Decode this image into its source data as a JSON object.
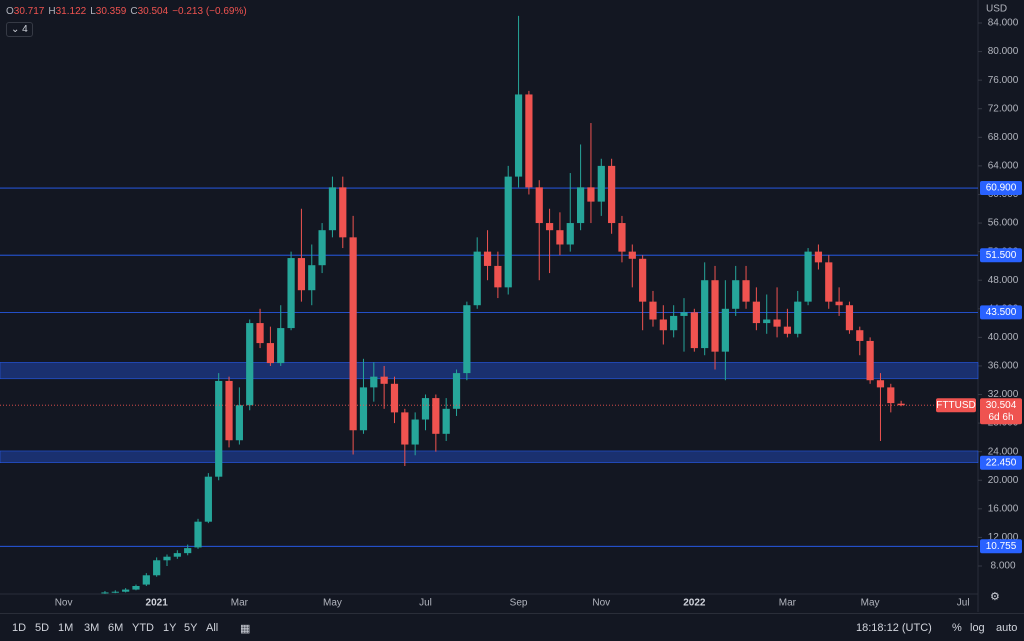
{
  "chart_data": {
    "type": "candlestick",
    "symbol": "FTTUSD",
    "currency": "USD",
    "countdown": "6d 6h",
    "header_labels": [
      "O",
      "H",
      "L",
      "C"
    ],
    "change": "−0.213 (−0.69%)",
    "indicator": "4",
    "up_color": "#26a69a",
    "down_color": "#ef5350",
    "categories": [
      "Nov",
      null,
      null,
      null,
      null,
      null,
      null,
      null,
      null,
      "2021",
      null,
      null,
      null,
      null,
      null,
      null,
      null,
      "Mar",
      null,
      null,
      null,
      null,
      null,
      null,
      null,
      null,
      "May",
      null,
      null,
      null,
      null,
      null,
      null,
      null,
      null,
      "Jul",
      null,
      null,
      null,
      null,
      null,
      null,
      null,
      null,
      "Sep",
      null,
      null,
      null,
      null,
      null,
      null,
      null,
      "Nov",
      null,
      null,
      null,
      null,
      null,
      null,
      null,
      null,
      "2022",
      null,
      null,
      null,
      null,
      null,
      null,
      null,
      null,
      "Mar",
      null,
      null,
      null,
      null,
      null,
      null,
      null,
      "May",
      null,
      null,
      null,
      null,
      null,
      null,
      null,
      null,
      "Jul"
    ],
    "open": [
      null,
      null,
      null,
      null,
      4.2,
      4.3,
      4.4,
      4.7,
      5.4,
      6.7,
      8.8,
      9.3,
      9.8,
      10.6,
      14.2,
      20.5,
      33.9,
      25.6,
      30.5,
      42.0,
      39.2,
      36.4,
      41.3,
      51.1,
      46.6,
      50.1,
      55.0,
      61.0,
      54.0,
      27.0,
      33.0,
      34.5,
      33.5,
      29.5,
      25.0,
      28.5,
      31.5,
      26.5,
      30.0,
      35.0,
      44.5,
      52.0,
      50.0,
      47.0,
      62.5,
      74.0,
      61.0,
      56.0,
      55.0,
      53.0,
      56.0,
      61.0,
      59.0,
      64.0,
      56.0,
      52.0,
      51.0,
      45.0,
      42.5,
      41.0,
      43.0,
      43.5,
      38.5,
      48.0,
      38.0,
      44.0,
      48.0,
      45.0,
      42.0,
      42.5,
      41.5,
      40.5,
      45.0,
      52.0,
      50.5,
      45.0,
      44.5,
      41.0,
      39.5,
      34.0,
      33.0,
      30.717,
      null,
      null,
      null,
      null,
      null,
      null
    ],
    "high": [
      null,
      null,
      null,
      null,
      4.5,
      4.6,
      4.9,
      5.4,
      7.0,
      9.2,
      9.6,
      10.2,
      11.0,
      14.6,
      21.0,
      35.0,
      34.5,
      33.0,
      42.5,
      44.0,
      41.5,
      44.5,
      52.0,
      58.0,
      53.0,
      56.0,
      62.5,
      62.5,
      57.0,
      37.0,
      36.5,
      36.0,
      34.5,
      30.0,
      29.5,
      32.0,
      32.0,
      31.5,
      35.5,
      45.0,
      54.0,
      55.0,
      52.0,
      64.0,
      85.0,
      74.5,
      62.0,
      58.0,
      57.5,
      63.0,
      67.0,
      70.0,
      65.0,
      65.0,
      57.0,
      53.0,
      51.5,
      46.5,
      44.5,
      44.5,
      45.5,
      44.0,
      50.5,
      50.0,
      48.0,
      50.0,
      50.0,
      47.0,
      46.0,
      47.0,
      44.0,
      46.5,
      52.5,
      53.0,
      51.5,
      47.0,
      45.0,
      41.5,
      40.0,
      35.0,
      33.5,
      31.122,
      null,
      null,
      null,
      null,
      null,
      null
    ],
    "low": [
      null,
      null,
      null,
      null,
      4.1,
      4.2,
      4.3,
      4.6,
      5.2,
      6.5,
      8.0,
      9.0,
      9.5,
      10.4,
      14.0,
      20.0,
      24.6,
      25.0,
      29.8,
      38.5,
      36.0,
      36.0,
      41.0,
      45.0,
      44.5,
      49.0,
      54.0,
      52.5,
      23.6,
      26.5,
      31.0,
      30.0,
      28.0,
      22.0,
      23.5,
      27.0,
      24.0,
      25.5,
      29.0,
      34.0,
      44.0,
      48.0,
      45.5,
      46.0,
      61.0,
      60.0,
      48.0,
      49.0,
      51.5,
      52.0,
      55.0,
      56.0,
      57.0,
      54.5,
      50.5,
      47.0,
      41.0,
      41.5,
      39.0,
      40.0,
      38.0,
      38.0,
      37.5,
      35.5,
      34.0,
      43.0,
      44.0,
      41.0,
      40.5,
      40.0,
      40.0,
      40.0,
      44.5,
      49.5,
      44.0,
      43.0,
      40.5,
      37.5,
      33.5,
      25.5,
      29.5,
      30.359,
      null,
      null,
      null,
      null,
      null,
      null
    ],
    "close": [
      null,
      null,
      null,
      null,
      4.3,
      4.4,
      4.7,
      5.2,
      6.7,
      8.8,
      9.3,
      9.8,
      10.5,
      14.2,
      20.5,
      33.9,
      25.6,
      30.5,
      42.0,
      39.2,
      36.4,
      41.3,
      51.1,
      46.6,
      50.1,
      55.0,
      61.0,
      54.0,
      27.0,
      33.0,
      34.5,
      33.5,
      29.5,
      25.0,
      28.5,
      31.5,
      26.5,
      30.0,
      35.0,
      44.5,
      52.0,
      50.0,
      47.0,
      62.5,
      74.0,
      61.0,
      56.0,
      55.0,
      53.0,
      56.0,
      61.0,
      59.0,
      64.0,
      56.0,
      52.0,
      51.0,
      45.0,
      42.5,
      41.0,
      43.0,
      43.5,
      38.5,
      48.0,
      38.0,
      44.0,
      48.0,
      45.0,
      42.0,
      42.5,
      41.5,
      40.5,
      45.0,
      52.0,
      50.5,
      45.0,
      44.5,
      41.0,
      39.5,
      34.0,
      33.0,
      30.8,
      30.504,
      null,
      null,
      null,
      null,
      null,
      null
    ],
    "ylim": [
      4.08,
      87.22
    ],
    "yticks": [
      {
        "value": 8,
        "label": "8.000"
      },
      {
        "value": 12,
        "label": "12.000"
      },
      {
        "value": 16,
        "label": "16.000"
      },
      {
        "value": 20,
        "label": "20.000"
      },
      {
        "value": 24,
        "label": "24.000"
      },
      {
        "value": 28,
        "label": "28.000"
      },
      {
        "value": 32,
        "label": "32.000"
      },
      {
        "value": 36,
        "label": "36.000"
      },
      {
        "value": 40,
        "label": "40.000"
      },
      {
        "value": 44,
        "label": "44.000"
      },
      {
        "value": 48,
        "label": "48.000"
      },
      {
        "value": 52,
        "label": "52.000"
      },
      {
        "value": 56,
        "label": "56.000"
      },
      {
        "value": 60,
        "label": "60.000"
      },
      {
        "value": 64,
        "label": "64.000"
      },
      {
        "value": 68,
        "label": "68.000"
      },
      {
        "value": 72,
        "label": "72.000"
      },
      {
        "value": 76,
        "label": "76.000"
      },
      {
        "value": 80,
        "label": "80.000"
      },
      {
        "value": 84,
        "label": "84.000"
      }
    ],
    "levels": [
      {
        "value": 60.9,
        "label": "60.900"
      },
      {
        "value": 51.5,
        "label": "51.500"
      },
      {
        "value": 43.5,
        "label": "43.500"
      },
      {
        "value": 10.755,
        "label": "10.755"
      }
    ],
    "zones": [
      {
        "from": 34.2,
        "to": 36.5
      },
      {
        "from": 22.45,
        "to": 24.1,
        "label": "22.450"
      }
    ]
  },
  "toolbar": {
    "ranges": [
      "1D",
      "5D",
      "1M",
      "3M",
      "6M",
      "YTD",
      "1Y",
      "5Y",
      "All"
    ],
    "time": "18:18:12 (UTC)",
    "options": [
      "%",
      "log",
      "auto"
    ]
  }
}
